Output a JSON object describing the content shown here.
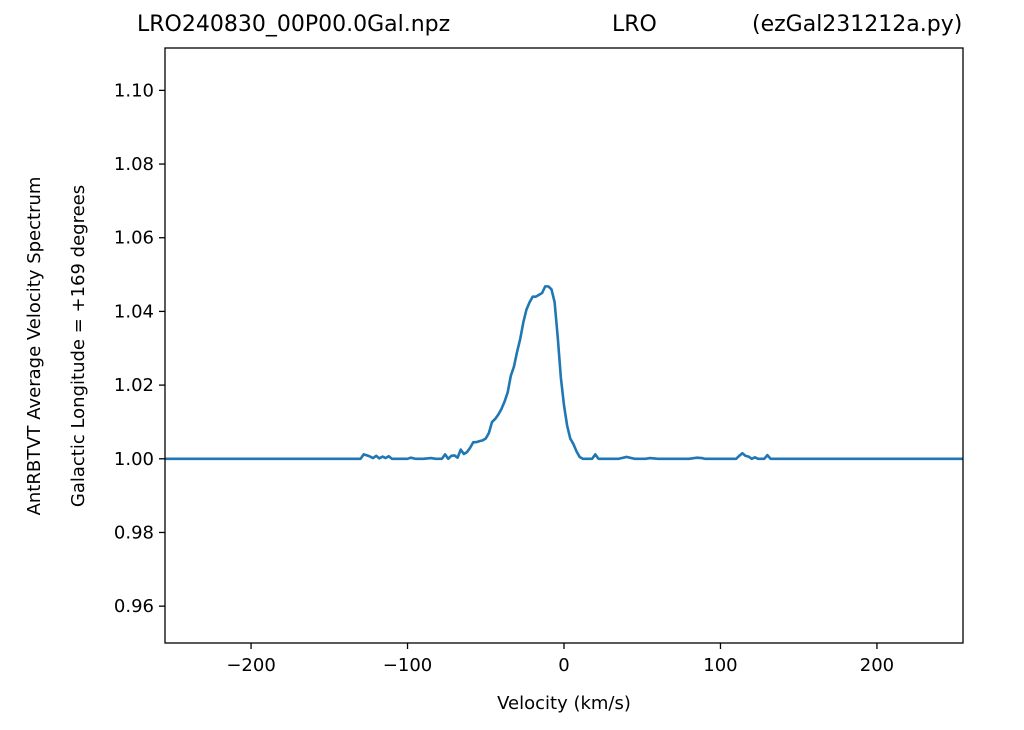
{
  "titles": {
    "left": "LRO240830_00P00.0Gal.npz",
    "middle": "LRO",
    "right": "(ezGal231212a.py)"
  },
  "chart_data": {
    "type": "line",
    "xlabel": "Velocity (km/s)",
    "ylabel_outer": "AntRBTVT Average Velocity Spectrum",
    "ylabel_inner": "Galactic Longitude = +169 degrees",
    "xlim": [
      -255,
      255
    ],
    "ylim": [
      0.95,
      1.1115
    ],
    "grid": false,
    "legend": "none",
    "x_ticks": [
      -200,
      -100,
      0,
      100,
      200
    ],
    "x_tick_labels": [
      "−200",
      "−100",
      "0",
      "100",
      "200"
    ],
    "y_ticks": [
      0.96,
      0.98,
      1.0,
      1.02,
      1.04,
      1.06,
      1.08,
      1.1
    ],
    "y_tick_labels": [
      "0.96",
      "0.98",
      "1.00",
      "1.02",
      "1.04",
      "1.06",
      "1.08",
      "1.10"
    ],
    "line_color": "#1f77b4",
    "series": [
      {
        "x": [
          -255,
          -130,
          -128,
          -125,
          -122,
          -120,
          -118,
          -116,
          -114,
          -112,
          -110,
          -105,
          -100,
          -98,
          -95,
          -90,
          -85,
          -82,
          -80,
          -78,
          -76,
          -74,
          -72,
          -70,
          -68,
          -66,
          -64,
          -62,
          -60,
          -58,
          -56,
          -54,
          -52,
          -50,
          -48,
          -46,
          -44,
          -42,
          -40,
          -38,
          -36,
          -34,
          -32,
          -30,
          -28,
          -26,
          -24,
          -22,
          -20,
          -18,
          -16,
          -14,
          -12,
          -10,
          -8,
          -6,
          -4,
          -2,
          0,
          2,
          4,
          6,
          8,
          10,
          12,
          14,
          16,
          18,
          20,
          22,
          24,
          26,
          28,
          30,
          32,
          35,
          40,
          45,
          48,
          50,
          52,
          55,
          60,
          70,
          75,
          80,
          85,
          88,
          90,
          92,
          95,
          100,
          110,
          112,
          114,
          116,
          118,
          120,
          122,
          124,
          126,
          128,
          130,
          132,
          140,
          150,
          160,
          170,
          180,
          190,
          200,
          210,
          220,
          230,
          240,
          255
        ],
        "y": [
          1.0,
          1.0,
          1.0012,
          1.0008,
          1.0002,
          1.0008,
          1.0001,
          1.0006,
          1.0002,
          1.0007,
          1.0,
          1.0,
          1.0,
          1.0003,
          1.0,
          1.0,
          1.0002,
          1.0,
          1.0,
          1.0,
          1.0012,
          1.0,
          1.0008,
          1.0009,
          1.0003,
          1.0025,
          1.0013,
          1.0018,
          1.003,
          1.0045,
          1.0045,
          1.0048,
          1.005,
          1.0055,
          1.007,
          1.01,
          1.0108,
          1.012,
          1.0135,
          1.0155,
          1.018,
          1.0225,
          1.025,
          1.029,
          1.0325,
          1.037,
          1.0405,
          1.0425,
          1.044,
          1.044,
          1.0445,
          1.045,
          1.0468,
          1.0468,
          1.046,
          1.0425,
          1.033,
          1.022,
          1.0145,
          1.009,
          1.0055,
          1.004,
          1.002,
          1.0005,
          1.0,
          1.0,
          1.0,
          1.0,
          1.0012,
          1.0,
          1.0,
          1.0,
          1.0,
          1.0,
          1.0,
          1.0,
          1.0005,
          1.0,
          1.0,
          1.0,
          1.0,
          1.0002,
          1.0,
          1.0,
          1.0,
          1.0,
          1.0003,
          1.0002,
          1.0,
          1.0,
          1.0,
          1.0,
          1.0,
          1.0008,
          1.0015,
          1.0008,
          1.0006,
          1.0,
          1.0004,
          1.0,
          1.0,
          1.0,
          1.001,
          1.0,
          1.0,
          1.0,
          1.0,
          1.0,
          1.0,
          1.0,
          1.0,
          1.0,
          1.0,
          1.0,
          1.0,
          1.0
        ]
      }
    ]
  }
}
